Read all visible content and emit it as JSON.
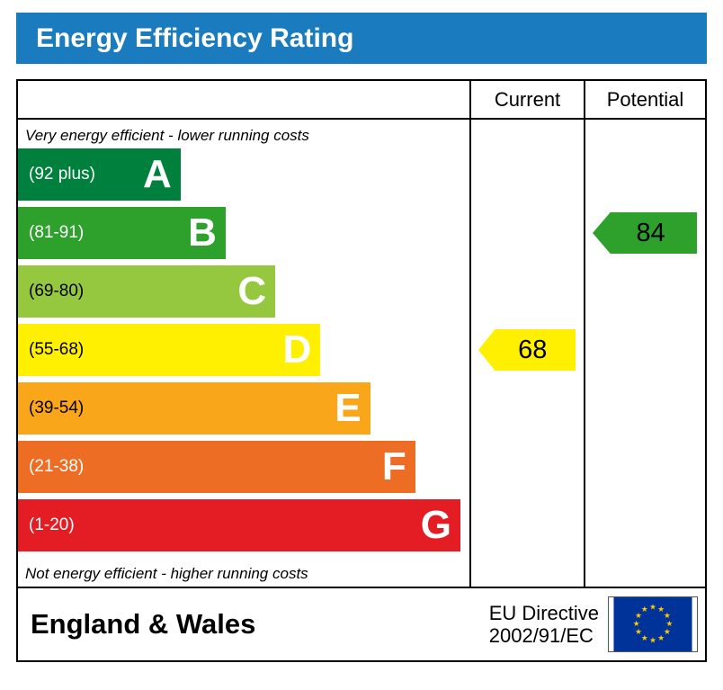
{
  "header": {
    "title": "Energy Efficiency Rating",
    "bar_color": "#1b7bbf",
    "text_color": "#ffffff"
  },
  "table": {
    "columns": {
      "current": "Current",
      "potential": "Potential"
    },
    "top_note": "Very energy efficient - lower running costs",
    "bottom_note": "Not energy efficient - higher running costs"
  },
  "chart_data": {
    "type": "bar",
    "title": "Energy Efficiency Rating",
    "scale": {
      "min": 1,
      "max": 100
    },
    "bands": [
      {
        "letter": "A",
        "range": "(92 plus)",
        "min": 92,
        "max": 100,
        "color": "#00803d",
        "range_color": "#ffffff",
        "width_pct": 36
      },
      {
        "letter": "B",
        "range": "(81-91)",
        "min": 81,
        "max": 91,
        "color": "#2ea12c",
        "range_color": "#ffffff",
        "width_pct": 46
      },
      {
        "letter": "C",
        "range": "(69-80)",
        "min": 69,
        "max": 80,
        "color": "#95c83f",
        "range_color": "#000000",
        "width_pct": 57
      },
      {
        "letter": "D",
        "range": "(55-68)",
        "min": 55,
        "max": 68,
        "color": "#ffef00",
        "range_color": "#000000",
        "width_pct": 67
      },
      {
        "letter": "E",
        "range": "(39-54)",
        "min": 39,
        "max": 54,
        "color": "#faa61a",
        "range_color": "#000000",
        "width_pct": 78
      },
      {
        "letter": "F",
        "range": "(21-38)",
        "min": 21,
        "max": 38,
        "color": "#ed6d24",
        "range_color": "#ffffff",
        "width_pct": 88
      },
      {
        "letter": "G",
        "range": "(1-20)",
        "min": 1,
        "max": 20,
        "color": "#e31d23",
        "range_color": "#ffffff",
        "width_pct": 98
      }
    ],
    "ratings": {
      "current": {
        "value": 68,
        "band": "D",
        "color": "#ffef00",
        "text_color": "#000000"
      },
      "potential": {
        "value": 84,
        "band": "B",
        "color": "#2ea12c",
        "text_color": "#000000"
      }
    }
  },
  "footer": {
    "region": "England & Wales",
    "directive_line1": "EU Directive",
    "directive_line2": "2002/91/EC",
    "eu_flag": "eu-flag-icon",
    "flag_colors": {
      "background": "#003399",
      "stars": "#ffcc00"
    }
  }
}
